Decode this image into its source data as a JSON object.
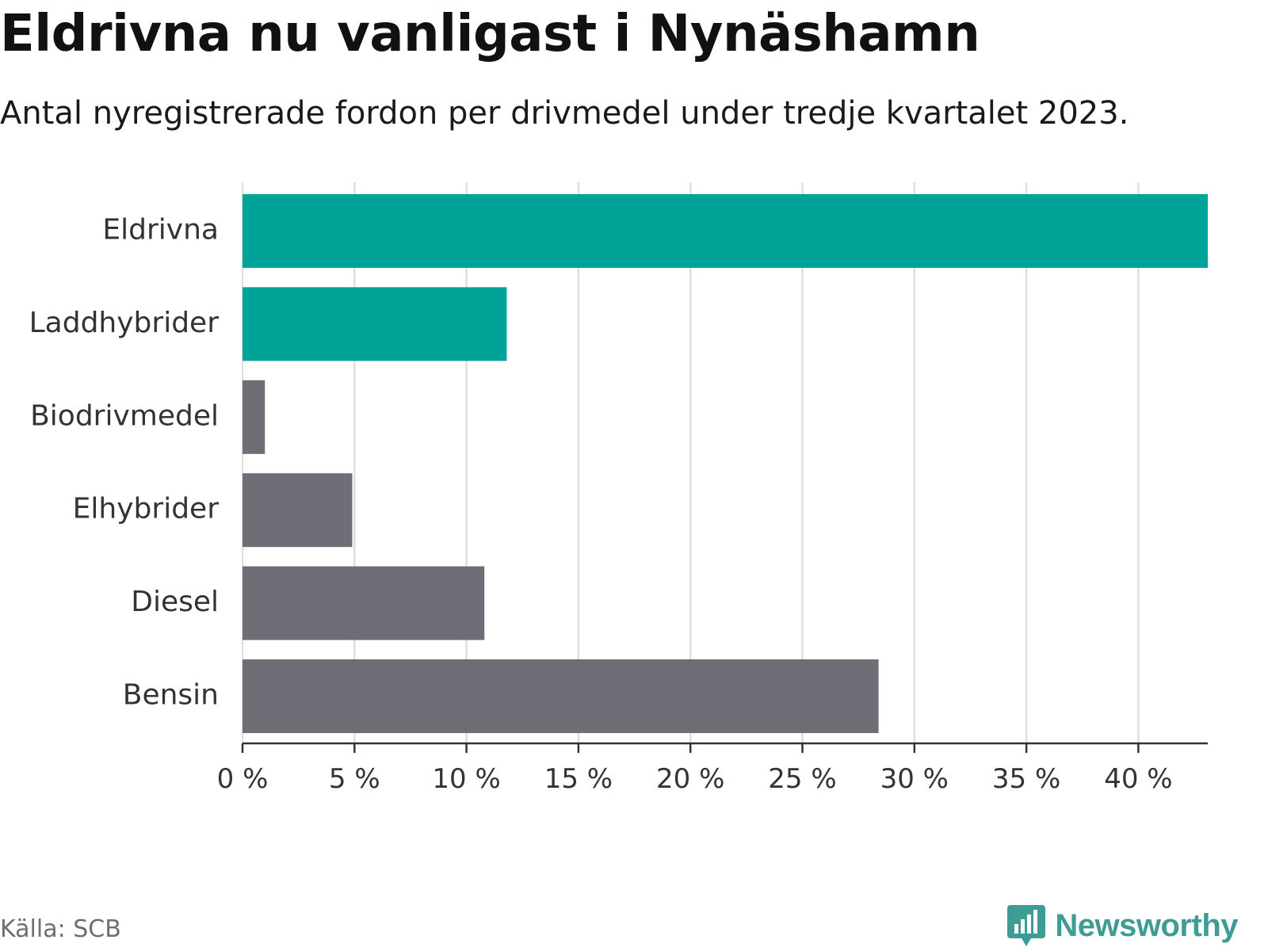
{
  "title": "Eldrivna nu vanligast i Nynäshamn",
  "subtitle": "Antal nyregistrerade fordon per drivmedel under tredje kvartalet 2023.",
  "source": "Källa: SCB",
  "brand": {
    "name": "Newsworthy",
    "icon": "newsworthy-logo-icon",
    "color": "#3f9c94"
  },
  "colors": {
    "highlight": "#00a398",
    "default": "#6e6e76",
    "grid": "#dedede",
    "axis": "#333333"
  },
  "chart_data": {
    "type": "bar",
    "orientation": "horizontal",
    "title": "Eldrivna nu vanligast i Nynäshamn",
    "subtitle": "Antal nyregistrerade fordon per drivmedel under tredje kvartalet 2023.",
    "xlabel": "",
    "ylabel": "",
    "xlim": [
      0,
      43.1
    ],
    "grid": true,
    "tick_values": [
      0,
      5,
      10,
      15,
      20,
      25,
      30,
      35,
      40
    ],
    "tick_labels": [
      "0 %",
      "5 %",
      "10 %",
      "15 %",
      "20 %",
      "25 %",
      "30 %",
      "35 %",
      "40 %"
    ],
    "categories": [
      "Eldrivna",
      "Laddhybrider",
      "Biodrivmedel",
      "Elhybrider",
      "Diesel",
      "Bensin"
    ],
    "values": [
      43.1,
      11.8,
      1.0,
      4.9,
      10.8,
      28.4
    ],
    "highlighted": [
      true,
      true,
      false,
      false,
      false,
      false
    ],
    "unit": "%"
  }
}
